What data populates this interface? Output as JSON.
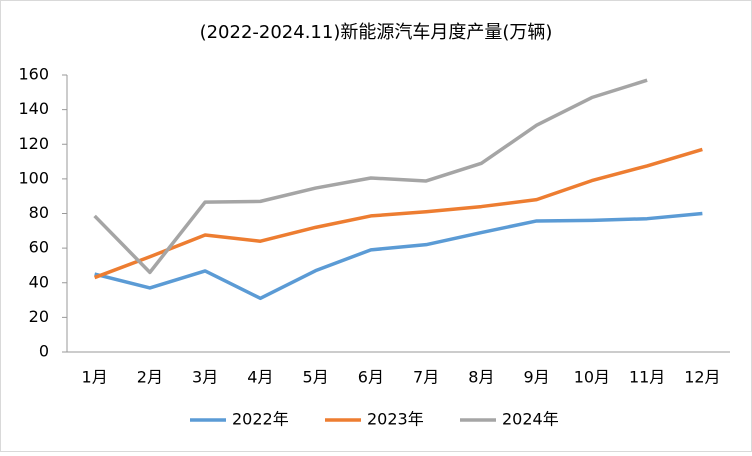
{
  "chart_data": {
    "type": "line",
    "title": "(2022-2024.11)新能源汽车月度产量(万辆)",
    "categories": [
      "1月",
      "2月",
      "3月",
      "4月",
      "5月",
      "6月",
      "7月",
      "8月",
      "9月",
      "10月",
      "11月",
      "12月"
    ],
    "series": [
      {
        "name": "2022年",
        "color": "#5b9bd5",
        "values": [
          45,
          37,
          46.8,
          31,
          47,
          59,
          62,
          69,
          75.7,
          76,
          77,
          80
        ]
      },
      {
        "name": "2023年",
        "color": "#ed7d31",
        "values": [
          43,
          55,
          67.6,
          64,
          72,
          78.6,
          81,
          84,
          88,
          99,
          107.5,
          117
        ]
      },
      {
        "name": "2024年",
        "color": "#a5a5a5",
        "values": [
          78.6,
          46,
          86.6,
          87,
          94.7,
          100.5,
          98.8,
          109,
          131,
          147,
          157,
          null
        ]
      }
    ],
    "ylim": [
      0,
      160
    ],
    "yticks": [
      0,
      20,
      40,
      60,
      80,
      100,
      120,
      140,
      160
    ],
    "legend": "bottom"
  }
}
